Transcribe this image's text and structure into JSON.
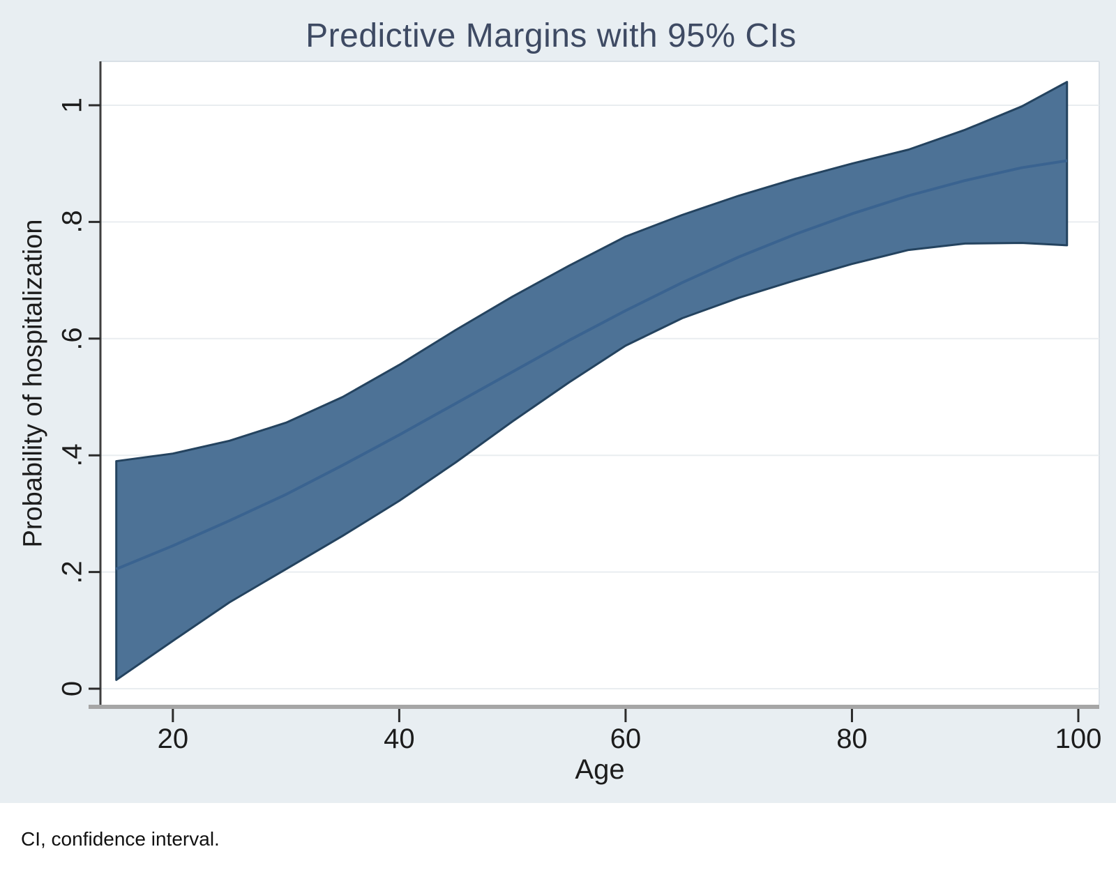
{
  "figure": {
    "title": "Predictive Margins with 95% CIs",
    "caption": "CI, confidence interval.",
    "colors": {
      "background": "#e8eef2",
      "plot_bg": "#ffffff",
      "band_fill": "#4d7296",
      "band_edge": "#24435f",
      "mean_line": "#3a6390",
      "grid": "#e9edf0",
      "plot_border": "#d9e0e6",
      "title_color": "#3e4a63",
      "axis_text": "#1c1c1c",
      "x_axis_line": "#a6a6a6",
      "y_axis_line": "#3f3f3f",
      "tick_color": "#2b2b2b"
    }
  },
  "chart_data": {
    "type": "line",
    "title": "Predictive Margins with 95% CIs",
    "xlabel": "Age",
    "ylabel": "Probability of hospitalization",
    "legend": "none",
    "grid": "horizontal",
    "x": [
      15,
      20,
      25,
      30,
      35,
      40,
      45,
      50,
      55,
      60,
      65,
      70,
      75,
      80,
      85,
      90,
      95,
      99
    ],
    "series": [
      {
        "name": "Predictive margin",
        "values": [
          0.205,
          0.245,
          0.288,
          0.333,
          0.383,
          0.435,
          0.489,
          0.543,
          0.597,
          0.648,
          0.696,
          0.74,
          0.779,
          0.814,
          0.845,
          0.871,
          0.893,
          0.905
        ]
      },
      {
        "name": "95% CI upper",
        "values": [
          0.39,
          0.403,
          0.425,
          0.456,
          0.5,
          0.555,
          0.615,
          0.672,
          0.725,
          0.775,
          0.812,
          0.845,
          0.874,
          0.9,
          0.924,
          0.958,
          0.998,
          1.04
        ]
      },
      {
        "name": "95% CI lower",
        "values": [
          0.015,
          0.082,
          0.148,
          0.205,
          0.262,
          0.322,
          0.388,
          0.458,
          0.525,
          0.588,
          0.635,
          0.67,
          0.7,
          0.728,
          0.752,
          0.763,
          0.764,
          0.76
        ]
      }
    ],
    "xlim": [
      13.6,
      101.85
    ],
    "ylim": [
      -0.0275,
      1.0753
    ],
    "x_ticks": [
      {
        "value": 20,
        "label": "20"
      },
      {
        "value": 40,
        "label": "40"
      },
      {
        "value": 60,
        "label": "60"
      },
      {
        "value": 80,
        "label": "80"
      },
      {
        "value": 100,
        "label": "100"
      }
    ],
    "y_ticks": [
      {
        "value": 0,
        "label": "0"
      },
      {
        "value": 0.2,
        "label": ".2"
      },
      {
        "value": 0.4,
        "label": ".4"
      },
      {
        "value": 0.6,
        "label": ".6"
      },
      {
        "value": 0.8,
        "label": ".8"
      },
      {
        "value": 1,
        "label": "1"
      }
    ]
  }
}
